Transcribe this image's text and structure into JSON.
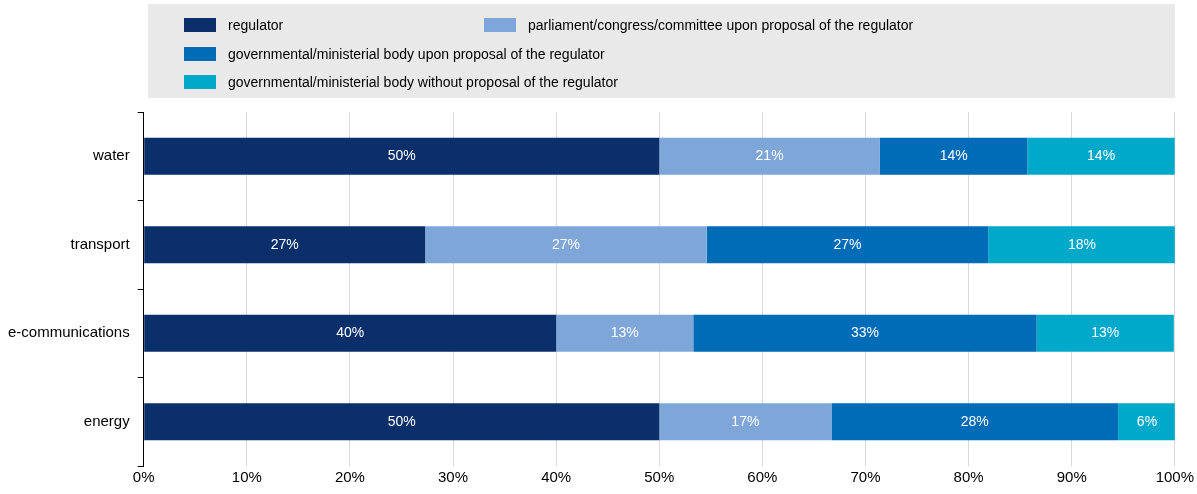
{
  "chart_data": {
    "type": "bar",
    "orientation": "horizontal",
    "stacked": true,
    "categories": [
      "water",
      "transport",
      "e-communications",
      "energy"
    ],
    "series": [
      {
        "name": "regulator",
        "color": "#0b2f6b",
        "values": [
          50,
          27.3,
          40,
          50
        ],
        "value_labels": [
          "50%",
          "27%",
          "40%",
          "50%"
        ]
      },
      {
        "name": "parliament/congress/committee upon proposal of the regulator",
        "color": "#7fa6d9",
        "values": [
          21.4,
          27.3,
          13.3,
          16.7
        ],
        "value_labels": [
          "21%",
          "27%",
          "13%",
          "17%"
        ]
      },
      {
        "name": "governmental/ministerial body upon proposal of the regulator",
        "color": "#006bb6",
        "values": [
          14.3,
          27.3,
          33.3,
          27.8
        ],
        "value_labels": [
          "14%",
          "27%",
          "33%",
          "28%"
        ]
      },
      {
        "name": "governmental/ministerial body without proposal of the regulator",
        "color": "#00a9ca",
        "values": [
          14.3,
          18.2,
          13.3,
          5.6
        ],
        "value_labels": [
          "14%",
          "18%",
          "13%",
          "6%"
        ]
      }
    ],
    "xlim": [
      0,
      100
    ],
    "xticks": [
      {
        "value": 0,
        "label": "0%"
      },
      {
        "value": 10,
        "label": "10%"
      },
      {
        "value": 20,
        "label": "20%"
      },
      {
        "value": 30,
        "label": "30%"
      },
      {
        "value": 40,
        "label": "40%"
      },
      {
        "value": 50,
        "label": "50%"
      },
      {
        "value": 60,
        "label": "60%"
      },
      {
        "value": 70,
        "label": "70%"
      },
      {
        "value": 80,
        "label": "80%"
      },
      {
        "value": 90,
        "label": "90%"
      },
      {
        "value": 100,
        "label": "100%"
      }
    ],
    "grid": "x",
    "legend": "top"
  }
}
